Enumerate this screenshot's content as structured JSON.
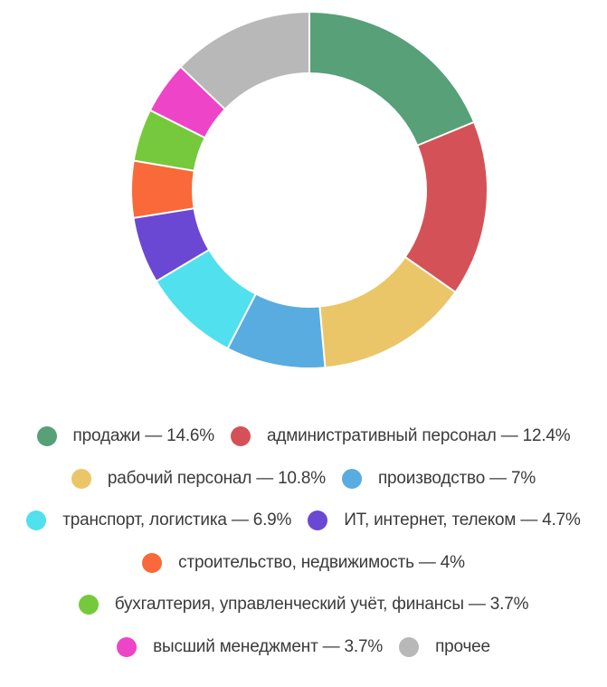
{
  "chart_data": {
    "type": "pie",
    "subtype": "donut",
    "title": "",
    "unit": "%",
    "start_angle_deg": 0,
    "direction": "clockwise",
    "inner_radius_ratio": 0.663,
    "separator_color": "#FFFFFF",
    "legend_position": "bottom",
    "legend_text_color": "#3B3B3B",
    "items": [
      {
        "label": "продажи",
        "value": 14.6,
        "value_labeled": true,
        "legend_text": "продажи — 14.6%",
        "color": "#57A078",
        "row": 0
      },
      {
        "label": "административный персонал",
        "value": 12.4,
        "value_labeled": true,
        "legend_text": "административный персонал — 12.4%",
        "color": "#D45257",
        "row": 0
      },
      {
        "label": "рабочий персонал",
        "value": 10.8,
        "value_labeled": true,
        "legend_text": "рабочий персонал — 10.8%",
        "color": "#EAC669",
        "row": 1
      },
      {
        "label": "производство",
        "value": 7,
        "value_labeled": true,
        "legend_text": "производство — 7%",
        "color": "#58ACDF",
        "row": 1
      },
      {
        "label": "транспорт, логистика",
        "value": 6.9,
        "value_labeled": true,
        "legend_text": "транспорт, логистика — 6.9%",
        "color": "#50E0EE",
        "row": 2
      },
      {
        "label": "ИТ, интернет, телеком",
        "value": 4.7,
        "value_labeled": true,
        "legend_text": "ИТ, интернет, телеком — 4.7%",
        "color": "#6B48D3",
        "row": 2
      },
      {
        "label": "строительство, недвижимость",
        "value": 4,
        "value_labeled": true,
        "legend_text": "строительство, недвижимость — 4%",
        "color": "#F96939",
        "row": 3
      },
      {
        "label": "бухгалтерия, управленческий учёт, финансы",
        "value": 3.7,
        "value_labeled": true,
        "legend_text": "бухгалтерия, управленческий учёт, финансы — 3.7%",
        "color": "#76C93C",
        "row": 4
      },
      {
        "label": "высший менеджмент",
        "value": 3.7,
        "value_labeled": true,
        "legend_text": "высший менеджмент — 3.7%",
        "color": "#EE44C8",
        "row": 5
      },
      {
        "label": "прочее",
        "value": 10,
        "value_labeled": false,
        "legend_text": "прочее",
        "color": "#B8B8B8",
        "row": 5
      }
    ]
  }
}
